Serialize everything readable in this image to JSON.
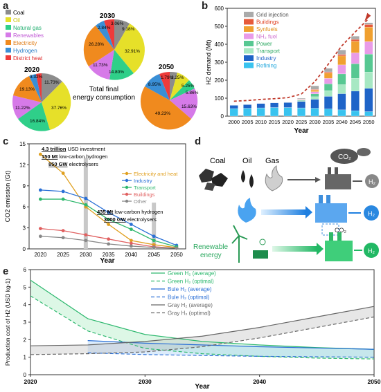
{
  "panel_labels": {
    "a": "a",
    "b": "b",
    "c": "c",
    "d": "d",
    "e": "e"
  },
  "colors": {
    "coal": "#8c8c8c",
    "oil": "#e6e029",
    "natural_gas": "#2fcf89",
    "renewables": "#d67ae8",
    "electricity": "#f08a1e",
    "hydrogen": "#3a8fd6",
    "district_heat": "#ee3b3b",
    "grid": "#aaaaaa",
    "buildings": "#e65a3a",
    "synfuels": "#f0a030",
    "nh3": "#e99be8",
    "power": "#57c892",
    "transport": "#a7e8c3",
    "industry": "#1f64c8",
    "refining": "#39c3ef",
    "green": "#3cc07a",
    "blue": "#2a6fd6",
    "gray": "#666666"
  },
  "panel_a": {
    "legend": [
      "Coal",
      "Oil",
      "Natural gas",
      "Renewables",
      "Electricity",
      "Hydrogen",
      "District heat"
    ],
    "center_text": [
      "Total final",
      "energy consumption"
    ],
    "pies": [
      {
        "year": "2020",
        "labels": [
          "11.73%",
          "37.76%",
          "16.84%",
          "11.22%",
          "19.13%",
          "3.32%"
        ]
      },
      {
        "year": "2030",
        "labels": [
          "9.18%",
          "32.91%",
          "14.80%",
          "11.73%",
          "26.28%",
          "3.06%",
          "2.84%"
        ]
      },
      {
        "year": "2050",
        "labels": [
          "2.25%",
          "5.25%",
          "5.86%",
          "15.63%",
          "49.23%",
          "8.95%",
          "1.79%"
        ]
      }
    ]
  },
  "chart_data": [
    {
      "type": "bar",
      "panel": "b",
      "ylabel": "H2 demand (Mt)",
      "xlabel": "Year",
      "ylim": [
        0,
        600
      ],
      "categories": [
        "2000",
        "2005",
        "2010",
        "2015",
        "2020",
        "2025",
        "2030",
        "2035",
        "2040",
        "2045",
        "2050"
      ],
      "series": [
        {
          "name": "Refining",
          "values": [
            42,
            44,
            46,
            48,
            48,
            46,
            44,
            40,
            35,
            30,
            25
          ]
        },
        {
          "name": "Industry",
          "values": [
            18,
            20,
            24,
            26,
            28,
            36,
            50,
            70,
            90,
            110,
            130
          ]
        },
        {
          "name": "Transport",
          "values": [
            0,
            0,
            0,
            0,
            1,
            4,
            14,
            32,
            50,
            70,
            90
          ]
        },
        {
          "name": "Power",
          "values": [
            0,
            0,
            0,
            0,
            1,
            4,
            16,
            38,
            60,
            82,
            100
          ]
        },
        {
          "name": "NH3 fuel",
          "values": [
            0,
            0,
            0,
            0,
            1,
            3,
            12,
            30,
            50,
            60,
            70
          ]
        },
        {
          "name": "Synfuels",
          "values": [
            0,
            0,
            0,
            0,
            0,
            2,
            10,
            30,
            50,
            65,
            80
          ]
        },
        {
          "name": "Buildings",
          "values": [
            0,
            0,
            0,
            0,
            0,
            1,
            3,
            6,
            8,
            10,
            15
          ]
        },
        {
          "name": "Grid injection",
          "values": [
            0,
            0,
            0,
            0,
            1,
            4,
            20,
            20,
            25,
            18,
            10
          ]
        }
      ],
      "legend_labels": {
        "Grid injection": "Grid injection",
        "Buildings": "Buildings",
        "Synfuels": "Synfuels",
        "NH3 fuel": "NH₃ fuel",
        "Power": "Power",
        "Transport": "Transport",
        "Industry": "Industry",
        "Refining": "Refining"
      }
    },
    {
      "type": "line",
      "panel": "c",
      "ylabel": "CO2 emission (Gt)",
      "xlabel": "Year",
      "ylim": [
        0,
        15
      ],
      "x": [
        2020,
        2025,
        2030,
        2035,
        2040,
        2045,
        2050
      ],
      "series": [
        {
          "name": "Electricity and heat",
          "values": [
            13.5,
            10.8,
            6.0,
            3.5,
            1.2,
            0.6,
            0.2
          ]
        },
        {
          "name": "Industry",
          "values": [
            8.4,
            8.2,
            7.2,
            5.2,
            3.5,
            1.8,
            0.5
          ]
        },
        {
          "name": "Transport",
          "values": [
            7.1,
            7.1,
            6.3,
            4.2,
            2.8,
            1.2,
            0.3
          ]
        },
        {
          "name": "Buildings",
          "values": [
            2.9,
            2.6,
            2.0,
            1.4,
            0.8,
            0.3,
            0.1
          ]
        },
        {
          "name": "Other",
          "values": [
            1.8,
            1.6,
            1.2,
            0.7,
            0.4,
            0.2,
            0.1
          ]
        }
      ],
      "annotations": [
        [
          "4.3 trillion",
          " USD investment"
        ],
        [
          "150 Mt",
          " low-carbon hydrogen"
        ],
        [
          "850 GW",
          " electrolysers"
        ],
        [
          "435 Mt",
          " low-carbon hydrogen"
        ],
        [
          "3000 GW",
          " electrolysers"
        ]
      ]
    },
    {
      "type": "line",
      "panel": "e",
      "ylabel": "Production cost of H2 (USD kg-1)",
      "xlabel": "Year",
      "ylim": [
        0,
        6
      ],
      "xlim": [
        2020,
        2050
      ],
      "series": [
        {
          "name": "Green H2 (average)",
          "x": [
            2020,
            2025,
            2030,
            2035,
            2040,
            2045,
            2050
          ],
          "values": [
            5.4,
            3.2,
            2.3,
            1.9,
            1.7,
            1.55,
            1.45
          ]
        },
        {
          "name": "Green H2 (optimal)",
          "x": [
            2020,
            2025,
            2030,
            2035,
            2040,
            2045,
            2050
          ],
          "values": [
            4.5,
            2.5,
            1.5,
            1.2,
            1.05,
            0.95,
            0.9
          ]
        },
        {
          "name": "Bule H2 (average)",
          "x": [
            2025,
            2030,
            2040,
            2050
          ],
          "values": [
            1.95,
            1.8,
            1.6,
            1.45
          ]
        },
        {
          "name": "Bule H2 (optimal)",
          "x": [
            2025,
            2030,
            2040,
            2050
          ],
          "values": [
            1.25,
            1.15,
            1.05,
            1.0
          ]
        },
        {
          "name": "Gray H2 (average)",
          "x": [
            2020,
            2025,
            2030,
            2035,
            2040,
            2045,
            2050
          ],
          "values": [
            1.65,
            1.7,
            1.9,
            2.2,
            2.7,
            3.3,
            3.9
          ]
        },
        {
          "name": "Gray H2 (optimal)",
          "x": [
            2020,
            2025,
            2030,
            2035,
            2040,
            2045,
            2050
          ],
          "values": [
            1.15,
            1.2,
            1.3,
            1.6,
            2.1,
            2.7,
            3.3
          ]
        }
      ],
      "legend_labels": [
        "Green H₂ (average)",
        "Green H₂ (optimal)",
        "Bule H₂ (average)",
        "Bule H₂ (optimal)",
        "Gray H₂ (average)",
        "Gray H₂ (optimal)"
      ]
    }
  ],
  "panel_d": {
    "labels": {
      "coal": "Coal",
      "oil": "Oil",
      "gas": "Gas",
      "co2_top": "CO₂",
      "co2_mid": "CO₂",
      "renewable": [
        "Renewable",
        "energy"
      ],
      "h2": "H₂"
    }
  }
}
